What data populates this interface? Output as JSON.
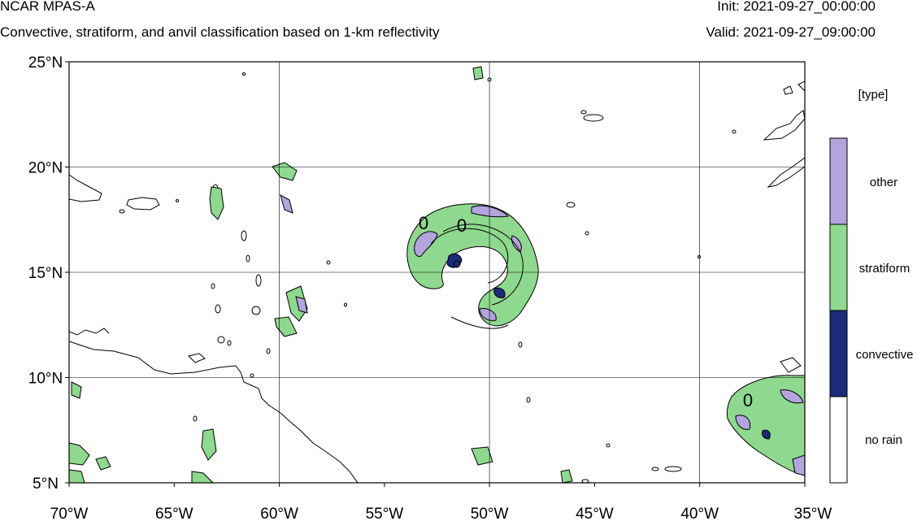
{
  "header": {
    "model": "NCAR MPAS-A",
    "subtitle": "Convective, stratiform, and anvil classification based on 1-km reflectivity",
    "init": "Init: 2021-09-27_00:00:00",
    "valid": "Valid: 2021-09-27_09:00:00"
  },
  "map": {
    "lon_range": [
      -70,
      -35
    ],
    "lat_range": [
      5,
      25
    ],
    "lon_ticks": [
      "70°W",
      "65°W",
      "60°W",
      "55°W",
      "50°W",
      "45°W",
      "40°W",
      "35°W"
    ],
    "lat_ticks": [
      "25°N",
      "20°N",
      "15°N",
      "10°N",
      "5°N"
    ],
    "grid": true,
    "contour_labels": [
      "0",
      "0",
      "0"
    ]
  },
  "legend": {
    "title": "[type]",
    "items": [
      {
        "label": "other",
        "color": "#b2a4dc"
      },
      {
        "label": "stratiform",
        "color": "#8fd88f"
      },
      {
        "label": "convective",
        "color": "#1c2a7a"
      },
      {
        "label": "no rain",
        "color": "#ffffff"
      }
    ]
  }
}
